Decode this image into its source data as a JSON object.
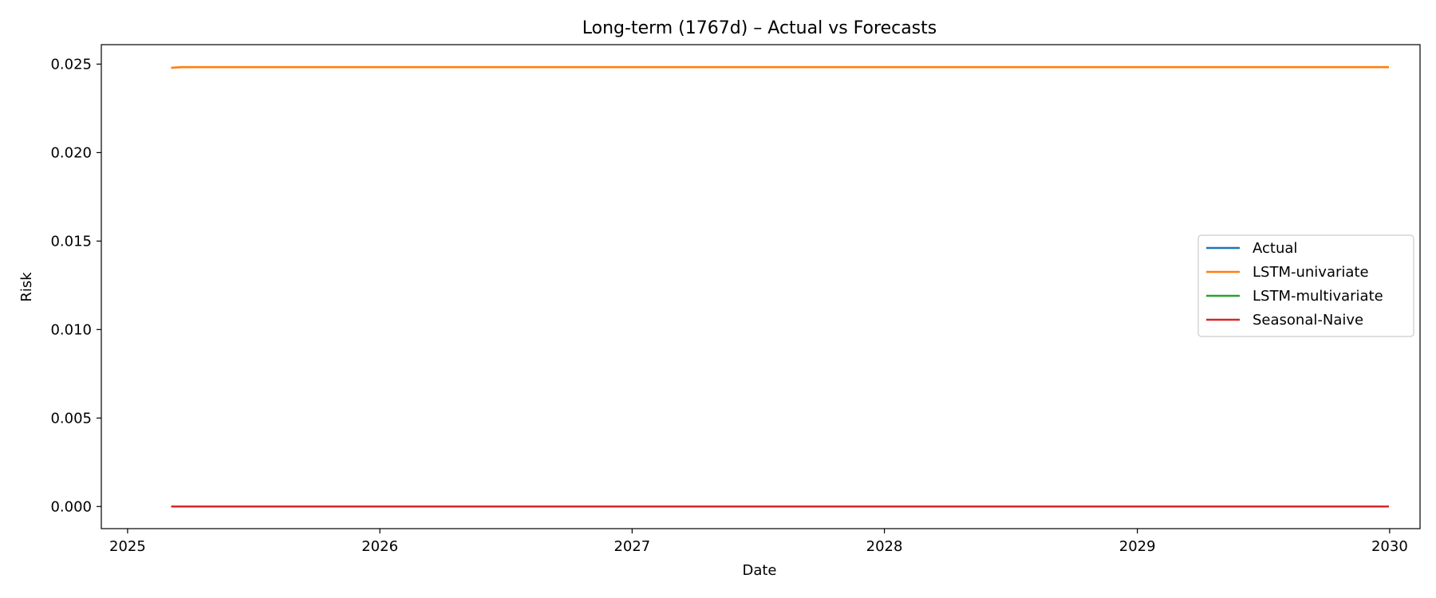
{
  "chart_data": {
    "type": "line",
    "title": "Long-term (1767d) – Actual vs Forecasts",
    "xlabel": "Date",
    "ylabel": "Risk",
    "x_ticks": [
      "2025",
      "2026",
      "2027",
      "2028",
      "2029",
      "2030"
    ],
    "y_ticks": [
      "0.000",
      "0.005",
      "0.010",
      "0.015",
      "0.020",
      "0.025"
    ],
    "xlim": [
      "2024-11-24",
      "2030-02-14"
    ],
    "ylim": [
      -0.00125,
      0.0261
    ],
    "grid": false,
    "legend_position": "center-right",
    "series": [
      {
        "name": "Actual",
        "color": "#1f77b4",
        "points": [
          [
            "2025-03-05",
            0.0
          ],
          [
            "2029-12-31",
            0.0
          ]
        ]
      },
      {
        "name": "LSTM-univariate",
        "color": "#ff7f0e",
        "points": [
          [
            "2025-03-05",
            0.02479
          ],
          [
            "2025-03-20",
            0.02483
          ],
          [
            "2029-12-31",
            0.02483
          ]
        ]
      },
      {
        "name": "LSTM-multivariate",
        "color": "#2ca02c",
        "points": [
          [
            "2025-03-05",
            0.0
          ],
          [
            "2029-12-31",
            0.0
          ]
        ]
      },
      {
        "name": "Seasonal-Naive",
        "color": "#d62728",
        "points": [
          [
            "2025-03-05",
            0.0
          ],
          [
            "2029-12-31",
            0.0
          ]
        ]
      }
    ]
  }
}
